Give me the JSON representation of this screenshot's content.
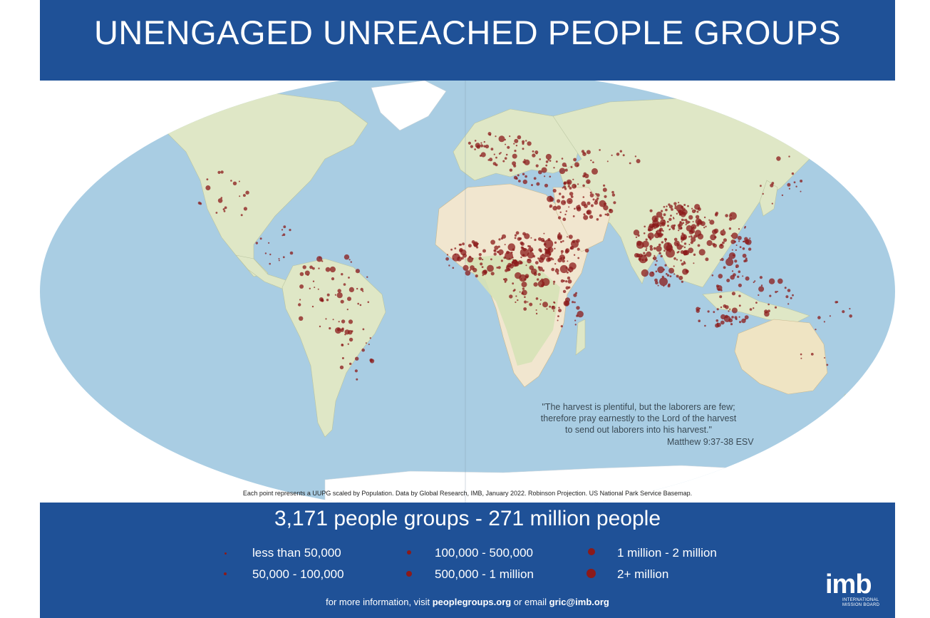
{
  "title": "UNENGAGED UNREACHED PEOPLE GROUPS",
  "map": {
    "projection": "Robinson",
    "colors": {
      "ocean": "#a9cde3",
      "land": "#dfe7c6",
      "desert": "#f1e6cf",
      "ice": "#ffffff",
      "dot": "#8b1a1a"
    },
    "quote": {
      "line1": "\"The harvest is plentiful, but the laborers are few;",
      "line2": "therefore pray earnestly to the Lord of the harvest",
      "line3": "to send out laborers into his harvest.\"",
      "source": "Matthew 9:37-38 ESV"
    },
    "credit": "Each point represents a UUPG scaled by Population. Data by Global Research, IMB, January 2022. Robinson Projection. US National Park Service Basemap."
  },
  "summary": "3,171 people groups  -  271 million people",
  "legend": [
    {
      "label": "less than 50,000"
    },
    {
      "label": "50,000 - 100,000"
    },
    {
      "label": "100,000 - 500,000"
    },
    {
      "label": "500,000 - 1 million"
    },
    {
      "label": "1 million - 2 million"
    },
    {
      "label": "2+ million"
    }
  ],
  "info": {
    "prefix": "for more information, visit ",
    "site": "peoplegroups.org",
    "middle": " or email ",
    "email": "gric@imb.org"
  },
  "logo": {
    "word": "imb",
    "line1": "INTERNATIONAL",
    "line2": "MISSION BOARD"
  }
}
